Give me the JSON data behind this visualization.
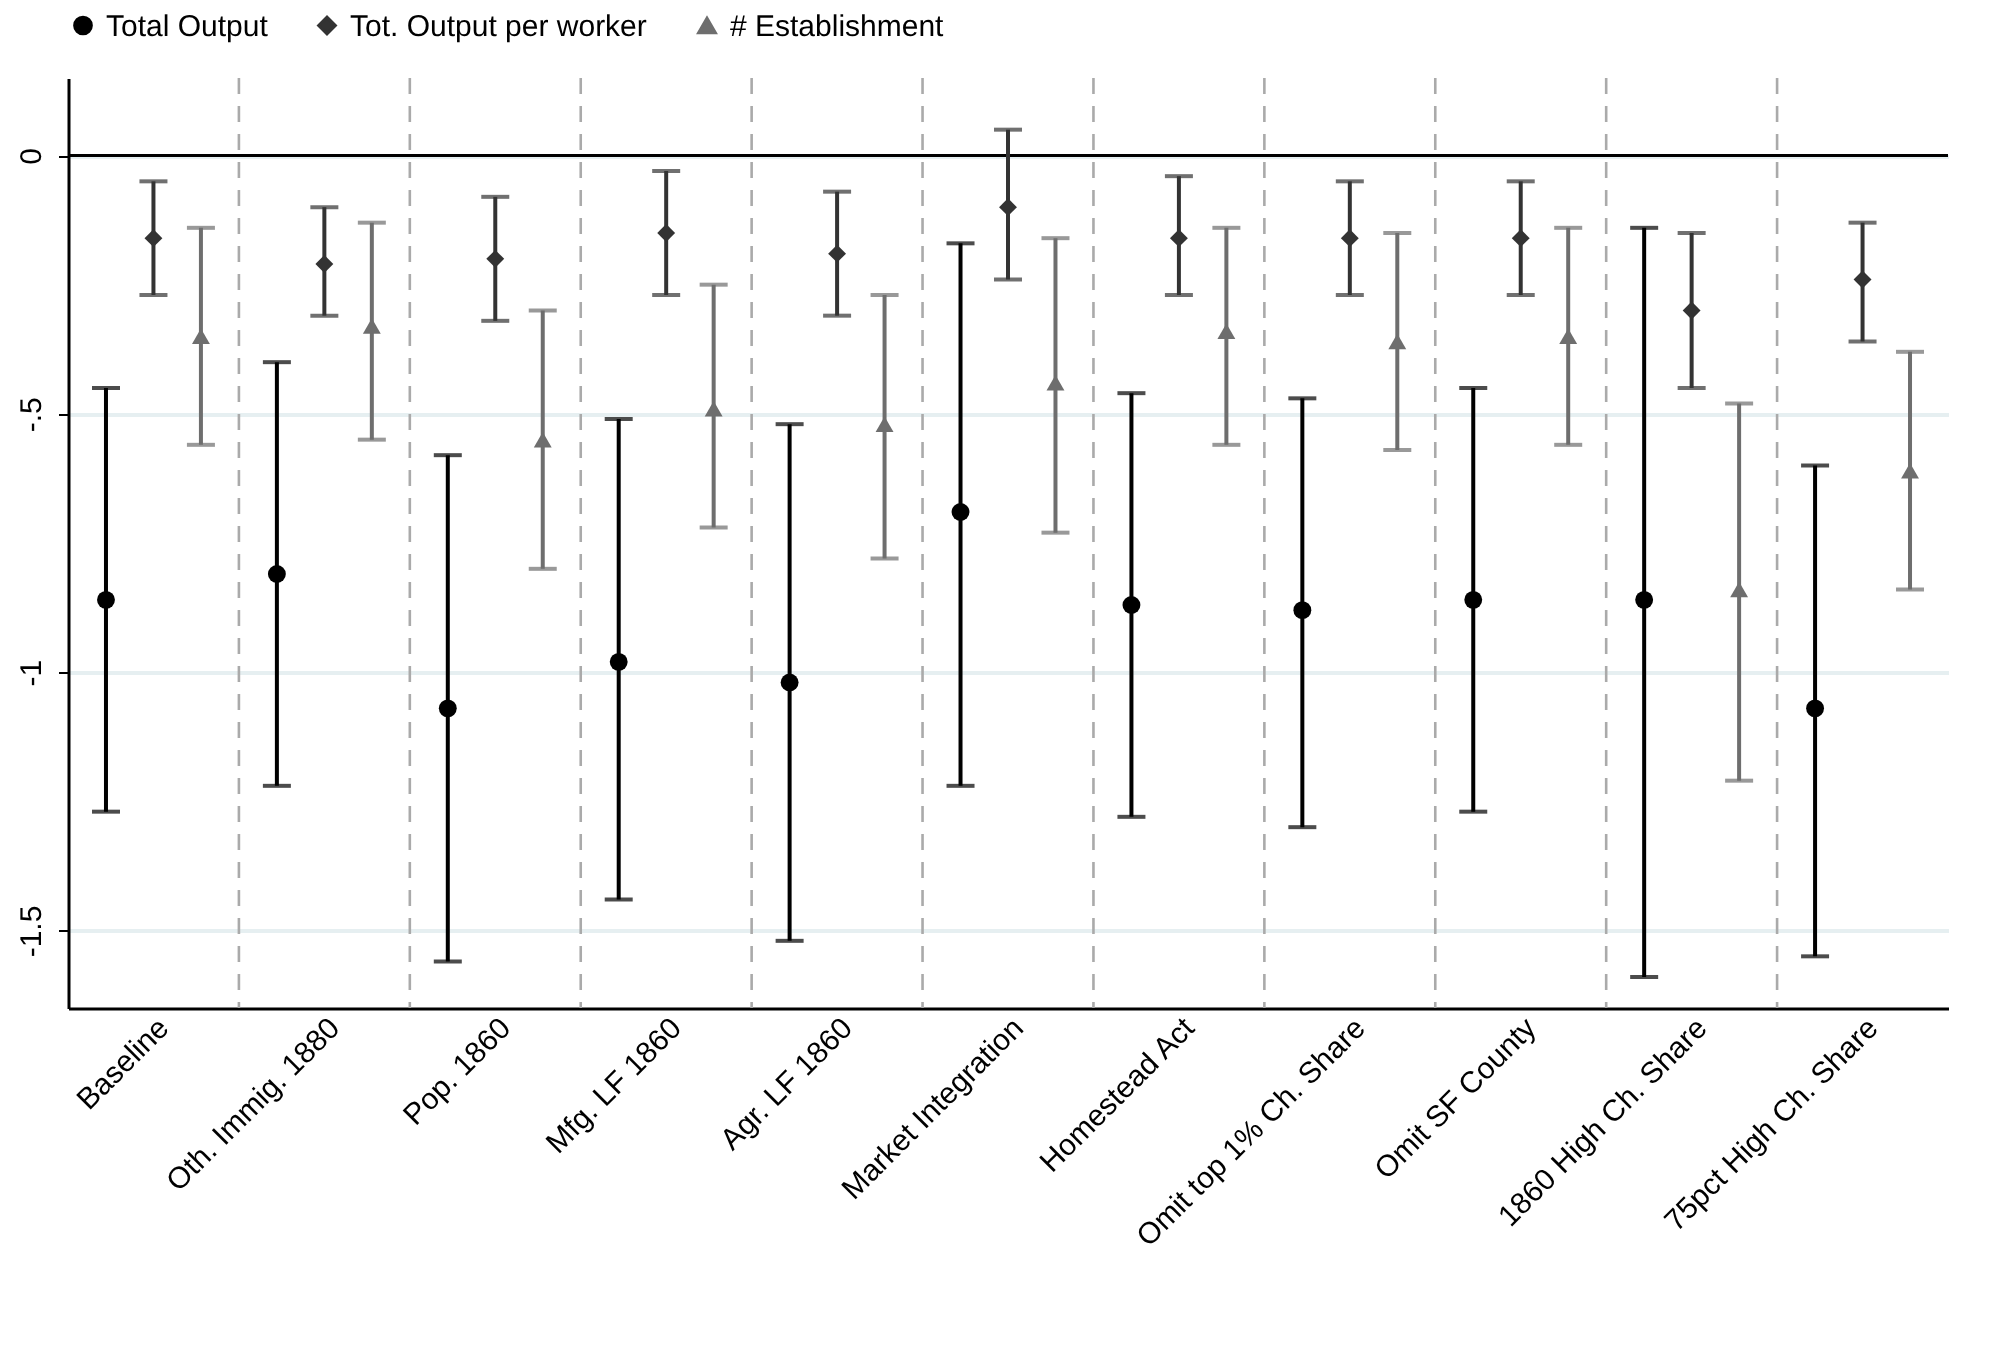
{
  "chart_data": {
    "type": "scatter",
    "categories": [
      "Baseline",
      "Oth. Immig. 1880",
      "Pop. 1860",
      "Mfg. LF 1860",
      "Agr. LF 1860",
      "Market Integration",
      "Homestead Act",
      "Omit top 1% Ch. Share",
      "Omit SF County",
      "1860 High Ch. Share",
      "75pct High Ch. Share"
    ],
    "series": [
      {
        "name": "Total Output",
        "color": "#000000",
        "marker": "circle",
        "values": [
          -0.86,
          -0.81,
          -1.07,
          -0.98,
          -1.02,
          -0.69,
          -0.87,
          -0.88,
          -0.86,
          -0.86,
          -1.07
        ],
        "errors": [
          [
            -1.27,
            -0.45
          ],
          [
            -1.22,
            -0.4
          ],
          [
            -1.56,
            -0.58
          ],
          [
            -1.44,
            -0.51
          ],
          [
            -1.52,
            -0.52
          ],
          [
            -1.22,
            -0.17
          ],
          [
            -1.28,
            -0.46
          ],
          [
            -1.3,
            -0.47
          ],
          [
            -1.27,
            -0.45
          ],
          [
            -1.59,
            -0.14
          ],
          [
            -1.55,
            -0.6
          ]
        ]
      },
      {
        "name": "Tot. Output per worker",
        "color": "#333333",
        "marker": "diamond",
        "values": [
          -0.16,
          -0.21,
          -0.2,
          -0.15,
          -0.19,
          -0.1,
          -0.16,
          -0.16,
          -0.16,
          -0.3,
          -0.24
        ],
        "errors": [
          [
            -0.27,
            -0.05
          ],
          [
            -0.31,
            -0.1
          ],
          [
            -0.32,
            -0.08
          ],
          [
            -0.27,
            -0.03
          ],
          [
            -0.31,
            -0.07
          ],
          [
            -0.24,
            0.05
          ],
          [
            -0.27,
            -0.04
          ],
          [
            -0.27,
            -0.05
          ],
          [
            -0.27,
            -0.05
          ],
          [
            -0.45,
            -0.15
          ],
          [
            -0.36,
            -0.13
          ]
        ]
      },
      {
        "name": "# Establishment",
        "color": "#6e6e6e",
        "marker": "triangle",
        "values": [
          -0.35,
          -0.33,
          -0.55,
          -0.49,
          -0.52,
          -0.44,
          -0.34,
          -0.36,
          -0.35,
          -0.84,
          -0.61
        ],
        "errors": [
          [
            -0.56,
            -0.14
          ],
          [
            -0.55,
            -0.13
          ],
          [
            -0.8,
            -0.3
          ],
          [
            -0.72,
            -0.25
          ],
          [
            -0.78,
            -0.27
          ],
          [
            -0.73,
            -0.16
          ],
          [
            -0.56,
            -0.14
          ],
          [
            -0.57,
            -0.15
          ],
          [
            -0.56,
            -0.14
          ],
          [
            -1.21,
            -0.48
          ],
          [
            -0.84,
            -0.38
          ]
        ]
      }
    ],
    "ylim": [
      -1.65,
      0.15
    ],
    "yticks": [
      {
        "value": -1.5,
        "label": "-1.5"
      },
      {
        "value": -1,
        "label": "-1"
      },
      {
        "value": -0.5,
        "label": "-.5"
      },
      {
        "value": 0,
        "label": "0"
      }
    ],
    "ref_lines": [
      {
        "axis": "y",
        "value": 0,
        "color": "#000000"
      }
    ],
    "grid": true,
    "legend": "top"
  }
}
